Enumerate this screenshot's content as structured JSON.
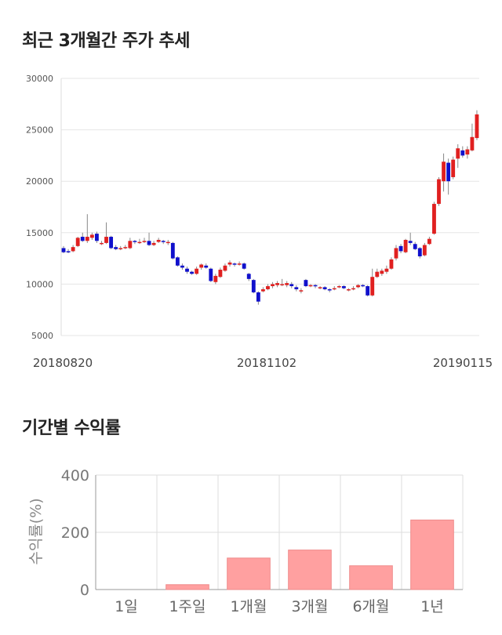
{
  "titles": {
    "price_trend": "최근 3개월간 주가 추세",
    "returns": "기간별 수익률"
  },
  "chart_data": [
    {
      "type": "candlestick",
      "title": "최근 3개월간 주가 추세",
      "ylim": [
        5000,
        30000
      ],
      "y_ticks": [
        "30000",
        "25000",
        "20000",
        "15000",
        "10000",
        "5000"
      ],
      "x_tick_labels": [
        "20180820",
        "20181102",
        "20190115"
      ],
      "colors": {
        "up": "#e02020",
        "down": "#1010cc",
        "wick": "#888888",
        "grid": "#e6e6e6"
      },
      "candles": [
        [
          13500,
          13100,
          13700,
          13000
        ],
        [
          13200,
          13100,
          13400,
          13000
        ],
        [
          13200,
          13600,
          13800,
          13100
        ],
        [
          13700,
          14500,
          14600,
          13600
        ],
        [
          14600,
          14200,
          15000,
          14100
        ],
        [
          14200,
          14600,
          16800,
          14000
        ],
        [
          14500,
          14800,
          15000,
          14300
        ],
        [
          14900,
          14200,
          15100,
          14000
        ],
        [
          14000,
          14000,
          14200,
          13800
        ],
        [
          14000,
          14600,
          16000,
          13900
        ],
        [
          14600,
          13500,
          14700,
          13400
        ],
        [
          13600,
          13400,
          13800,
          13300
        ],
        [
          13400,
          13500,
          13700,
          13300
        ],
        [
          13500,
          13600,
          13800,
          13400
        ],
        [
          13500,
          14200,
          14500,
          13400
        ],
        [
          14200,
          14100,
          14300,
          13900
        ],
        [
          14000,
          14100,
          14400,
          13900
        ],
        [
          14100,
          14200,
          14500,
          14000
        ],
        [
          14200,
          13800,
          15000,
          13700
        ],
        [
          13800,
          14000,
          14200,
          13700
        ],
        [
          14100,
          14300,
          14500,
          14000
        ],
        [
          14200,
          14100,
          14300,
          13900
        ],
        [
          14000,
          14100,
          14300,
          13800
        ],
        [
          14000,
          12500,
          14100,
          12400
        ],
        [
          12600,
          11800,
          12700,
          11700
        ],
        [
          11800,
          11600,
          12000,
          11400
        ],
        [
          11500,
          11200,
          11700,
          11000
        ],
        [
          11200,
          11000,
          11300,
          10900
        ],
        [
          11000,
          11500,
          11700,
          10900
        ],
        [
          11600,
          11900,
          12000,
          11400
        ],
        [
          11800,
          11600,
          12000,
          11500
        ],
        [
          11500,
          10300,
          11600,
          10200
        ],
        [
          10200,
          10800,
          11000,
          10000
        ],
        [
          10700,
          11400,
          11600,
          10600
        ],
        [
          11300,
          11800,
          12000,
          11200
        ],
        [
          11900,
          12100,
          12300,
          11700
        ],
        [
          12000,
          11900,
          12100,
          11700
        ],
        [
          11900,
          12000,
          12200,
          11800
        ],
        [
          12000,
          11500,
          12100,
          11400
        ],
        [
          11000,
          10500,
          11100,
          10300
        ],
        [
          10400,
          9200,
          10500,
          9100
        ],
        [
          9200,
          8300,
          9300,
          8000
        ],
        [
          9300,
          9500,
          9700,
          9200
        ],
        [
          9500,
          9800,
          10000,
          9400
        ],
        [
          9800,
          10000,
          10200,
          9600
        ],
        [
          9900,
          10100,
          10300,
          9700
        ],
        [
          10000,
          10000,
          10500,
          9800
        ],
        [
          9900,
          10100,
          10300,
          9700
        ],
        [
          10000,
          9800,
          10200,
          9600
        ],
        [
          9700,
          9500,
          9900,
          9300
        ],
        [
          9300,
          9400,
          9600,
          9100
        ],
        [
          10400,
          9800,
          10500,
          9700
        ],
        [
          9800,
          9900,
          10000,
          9700
        ],
        [
          9900,
          9800,
          10000,
          9600
        ],
        [
          9700,
          9700,
          9800,
          9500
        ],
        [
          9700,
          9500,
          9800,
          9400
        ],
        [
          9500,
          9400,
          9600,
          9200
        ],
        [
          9500,
          9600,
          9800,
          9400
        ],
        [
          9700,
          9800,
          9900,
          9600
        ],
        [
          9800,
          9600,
          9900,
          9500
        ],
        [
          9500,
          9500,
          9600,
          9300
        ],
        [
          9500,
          9600,
          9800,
          9400
        ],
        [
          9700,
          9900,
          10000,
          9600
        ],
        [
          9900,
          9800,
          10000,
          9700
        ],
        [
          9800,
          8900,
          9900,
          8800
        ],
        [
          8900,
          10700,
          11500,
          8800
        ],
        [
          10700,
          11200,
          11500,
          10600
        ],
        [
          11000,
          11300,
          11500,
          10800
        ],
        [
          11200,
          11500,
          11800,
          11000
        ],
        [
          11500,
          12400,
          12600,
          11400
        ],
        [
          12500,
          13500,
          13800,
          12300
        ],
        [
          13700,
          13200,
          13900,
          13000
        ],
        [
          13100,
          14300,
          14400,
          13000
        ],
        [
          14200,
          14000,
          15000,
          13800
        ],
        [
          13900,
          13400,
          14100,
          13300
        ],
        [
          13500,
          12700,
          13600,
          12500
        ],
        [
          12800,
          13800,
          14000,
          12700
        ],
        [
          13900,
          14400,
          14600,
          13800
        ],
        [
          14900,
          17800,
          18000,
          14800
        ],
        [
          17800,
          20200,
          20400,
          17600
        ],
        [
          20000,
          21900,
          22700,
          19000
        ],
        [
          21800,
          20000,
          22200,
          18700
        ],
        [
          20400,
          22100,
          22400,
          20200
        ],
        [
          22200,
          23200,
          23600,
          21300
        ],
        [
          23000,
          22500,
          23400,
          22300
        ],
        [
          22600,
          23100,
          23400,
          22200
        ],
        [
          23000,
          24300,
          25600,
          22900
        ],
        [
          24200,
          26500,
          26900,
          24000
        ]
      ],
      "xlabel": "",
      "ylabel": ""
    },
    {
      "type": "bar",
      "title": "기간별 수익률",
      "categories": [
        "1일",
        "1주일",
        "1개월",
        "3개월",
        "6개월",
        "1년"
      ],
      "values": [
        0,
        17,
        110,
        138,
        83,
        243
      ],
      "ylabel": "수익률(%)",
      "ylim": [
        0,
        400
      ],
      "y_ticks": [
        "400",
        "200",
        "0"
      ],
      "colors": {
        "bar": "#ffa0a0",
        "bar_edge": "#ee8a8a",
        "grid": "#dddddd",
        "axis": "#999999"
      }
    }
  ]
}
